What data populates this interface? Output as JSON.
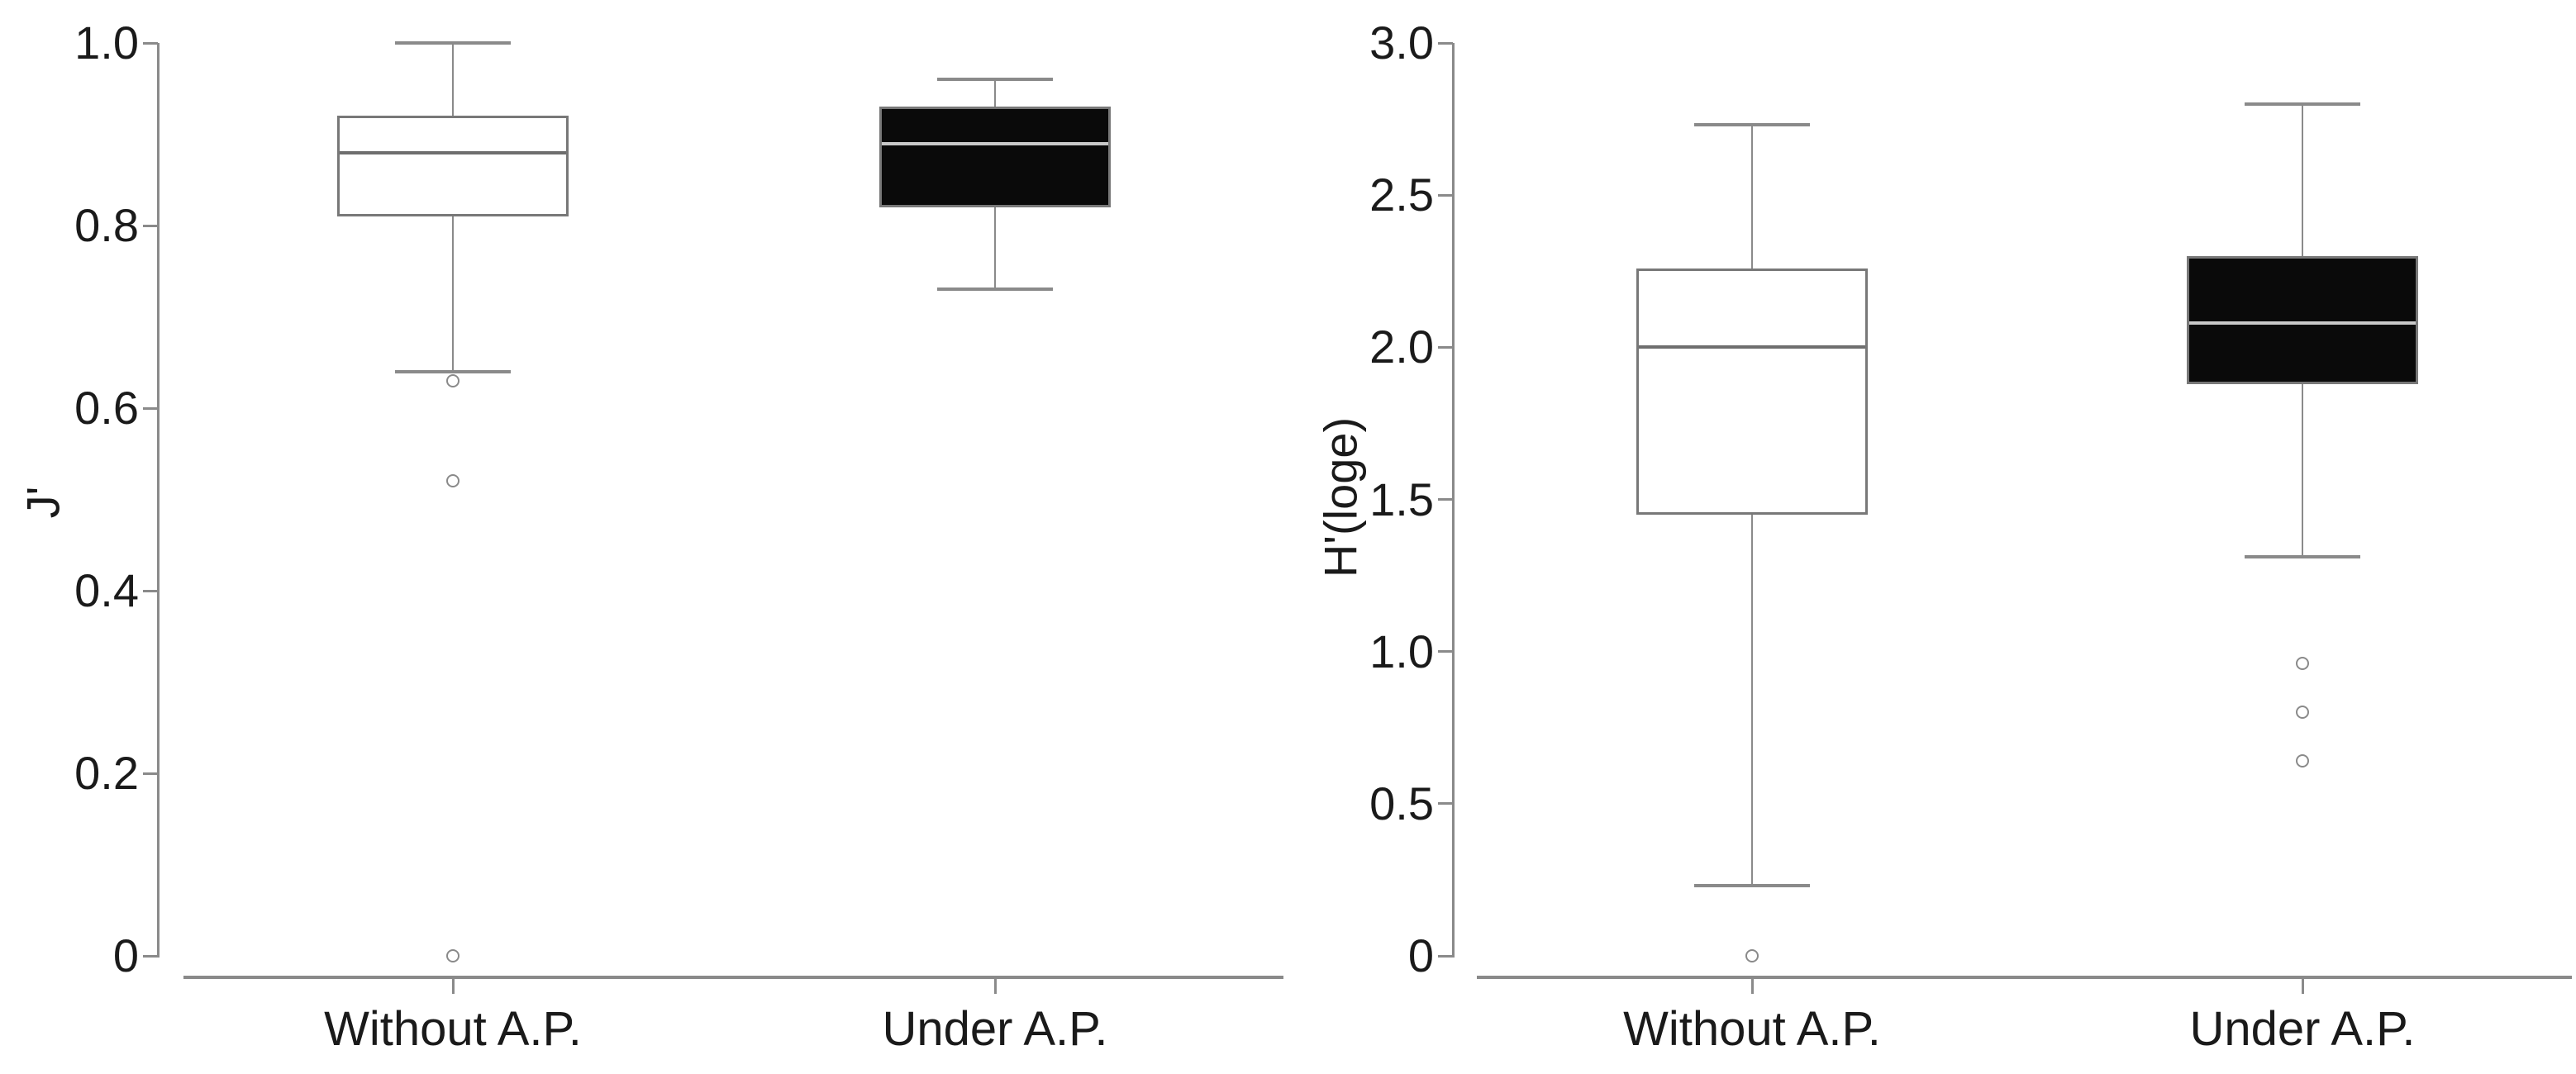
{
  "figure": {
    "background": "#ffffff",
    "colors": {
      "text": "#1a1a1a",
      "axis_line": "#8a8a8a",
      "box_border": "#787878",
      "white_box_fill": "#ffffff",
      "black_box_fill": "#0a0a0a",
      "median_on_white": "#6e6e6e",
      "median_on_black": "#c9c9c9",
      "outlier_stroke": "#8a8a8a"
    }
  },
  "chart_data": [
    {
      "type": "boxplot",
      "title": "",
      "xlabel": "",
      "ylabel": "J'",
      "ylim": [
        0,
        1.0
      ],
      "yticks": [
        0,
        0.2,
        0.4,
        0.6,
        0.8,
        1.0
      ],
      "ytick_labels": [
        "0",
        "0.2",
        "0.4",
        "0.6",
        "0.8",
        "1.0"
      ],
      "grid": false,
      "legend": "none",
      "categories": [
        "Without A.P.",
        "Under A.P."
      ],
      "series": [
        {
          "category": "Without A.P.",
          "fill": "white",
          "whisker_low": 0.64,
          "q1": 0.81,
          "median": 0.88,
          "q3": 0.92,
          "whisker_high": 1.0,
          "outliers": [
            0.63,
            0.52,
            0.0
          ]
        },
        {
          "category": "Under A.P.",
          "fill": "black",
          "whisker_low": 0.73,
          "q1": 0.82,
          "median": 0.89,
          "q3": 0.93,
          "whisker_high": 0.96,
          "outliers": []
        }
      ]
    },
    {
      "type": "boxplot",
      "title": "",
      "xlabel": "",
      "ylabel": "H'(loge)",
      "ylim": [
        0,
        3.0
      ],
      "yticks": [
        0,
        0.5,
        1.0,
        1.5,
        2.0,
        2.5,
        3.0
      ],
      "ytick_labels": [
        "0",
        "0.5",
        "1.0",
        "1.5",
        "2.0",
        "2.5",
        "3.0"
      ],
      "grid": false,
      "legend": "none",
      "categories": [
        "Without A.P.",
        "Under A.P."
      ],
      "series": [
        {
          "category": "Without A.P.",
          "fill": "white",
          "whisker_low": 0.23,
          "q1": 1.45,
          "median": 2.0,
          "q3": 2.26,
          "whisker_high": 2.73,
          "outliers": [
            0.0
          ]
        },
        {
          "category": "Under A.P.",
          "fill": "black",
          "whisker_low": 1.31,
          "q1": 1.88,
          "median": 2.08,
          "q3": 2.3,
          "whisker_high": 2.8,
          "outliers": [
            0.96,
            0.8,
            0.64
          ]
        }
      ]
    }
  ]
}
